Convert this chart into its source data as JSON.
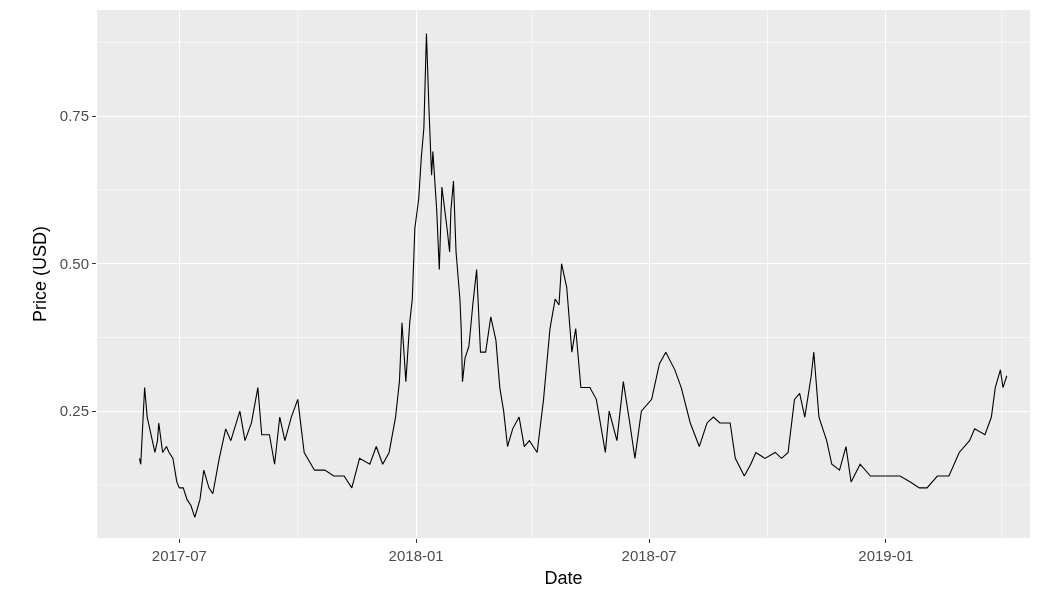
{
  "chart_data": {
    "type": "line",
    "xlabel": "Date",
    "ylabel": "Price (USD)",
    "x": [
      "2017-05-31",
      "2017-06-01",
      "2017-06-04",
      "2017-06-06",
      "2017-06-08",
      "2017-06-12",
      "2017-06-14",
      "2017-06-15",
      "2017-06-18",
      "2017-06-21",
      "2017-06-23",
      "2017-06-26",
      "2017-06-29",
      "2017-07-01",
      "2017-07-04",
      "2017-07-07",
      "2017-07-10",
      "2017-07-13",
      "2017-07-17",
      "2017-07-20",
      "2017-07-24",
      "2017-07-27",
      "2017-08-01",
      "2017-08-06",
      "2017-08-10",
      "2017-08-17",
      "2017-08-21",
      "2017-08-26",
      "2017-08-31",
      "2017-09-03",
      "2017-09-09",
      "2017-09-13",
      "2017-09-17",
      "2017-09-21",
      "2017-09-26",
      "2017-10-01",
      "2017-10-06",
      "2017-10-14",
      "2017-10-22",
      "2017-10-29",
      "2017-11-06",
      "2017-11-12",
      "2017-11-18",
      "2017-11-26",
      "2017-12-01",
      "2017-12-06",
      "2017-12-11",
      "2017-12-16",
      "2017-12-19",
      "2017-12-21",
      "2017-12-24",
      "2017-12-27",
      "2017-12-29",
      "2017-12-31",
      "2018-01-03",
      "2018-01-05",
      "2018-01-07",
      "2018-01-09",
      "2018-01-11",
      "2018-01-13",
      "2018-01-14",
      "2018-01-17",
      "2018-01-19",
      "2018-01-21",
      "2018-01-25",
      "2018-01-27",
      "2018-01-28",
      "2018-01-30",
      "2018-02-01",
      "2018-02-04",
      "2018-02-05",
      "2018-02-06",
      "2018-02-08",
      "2018-02-11",
      "2018-02-14",
      "2018-02-17",
      "2018-02-20",
      "2018-02-24",
      "2018-02-28",
      "2018-03-04",
      "2018-03-07",
      "2018-03-10",
      "2018-03-13",
      "2018-03-17",
      "2018-03-22",
      "2018-03-26",
      "2018-03-30",
      "2018-04-05",
      "2018-04-10",
      "2018-04-15",
      "2018-04-19",
      "2018-04-22",
      "2018-04-24",
      "2018-04-28",
      "2018-05-02",
      "2018-05-05",
      "2018-05-09",
      "2018-05-16",
      "2018-05-21",
      "2018-05-28",
      "2018-05-31",
      "2018-06-06",
      "2018-06-11",
      "2018-06-16",
      "2018-06-20",
      "2018-06-25",
      "2018-07-03",
      "2018-07-09",
      "2018-07-14",
      "2018-07-21",
      "2018-07-26",
      "2018-08-02",
      "2018-08-09",
      "2018-08-15",
      "2018-08-20",
      "2018-08-25",
      "2018-09-02",
      "2018-09-06",
      "2018-09-13",
      "2018-09-18",
      "2018-09-22",
      "2018-09-29",
      "2018-10-07",
      "2018-10-12",
      "2018-10-17",
      "2018-10-22",
      "2018-10-26",
      "2018-10-30",
      "2018-11-04",
      "2018-11-06",
      "2018-11-10",
      "2018-11-16",
      "2018-11-20",
      "2018-11-26",
      "2018-12-01",
      "2018-12-05",
      "2018-12-12",
      "2018-12-20",
      "2018-12-28",
      "2019-01-04",
      "2019-01-12",
      "2019-01-20",
      "2019-01-27",
      "2019-02-02",
      "2019-02-10",
      "2019-02-19",
      "2019-02-27",
      "2019-03-07",
      "2019-03-11",
      "2019-03-19",
      "2019-03-24",
      "2019-03-27",
      "2019-03-31",
      "2019-04-02",
      "2019-04-05"
    ],
    "series": [
      {
        "color": "#000000",
        "values": [
          0.17,
          0.16,
          0.29,
          0.24,
          0.22,
          0.18,
          0.2,
          0.23,
          0.18,
          0.19,
          0.18,
          0.17,
          0.13,
          0.12,
          0.12,
          0.1,
          0.09,
          0.07,
          0.1,
          0.15,
          0.12,
          0.11,
          0.17,
          0.22,
          0.2,
          0.25,
          0.2,
          0.23,
          0.29,
          0.21,
          0.21,
          0.16,
          0.24,
          0.2,
          0.24,
          0.27,
          0.18,
          0.15,
          0.15,
          0.14,
          0.14,
          0.12,
          0.17,
          0.16,
          0.19,
          0.16,
          0.18,
          0.24,
          0.3,
          0.4,
          0.3,
          0.4,
          0.44,
          0.56,
          0.61,
          0.68,
          0.73,
          0.89,
          0.76,
          0.65,
          0.69,
          0.59,
          0.49,
          0.63,
          0.56,
          0.52,
          0.59,
          0.64,
          0.52,
          0.44,
          0.39,
          0.3,
          0.34,
          0.36,
          0.43,
          0.49,
          0.35,
          0.35,
          0.41,
          0.37,
          0.29,
          0.25,
          0.19,
          0.22,
          0.24,
          0.19,
          0.2,
          0.18,
          0.27,
          0.39,
          0.44,
          0.43,
          0.5,
          0.46,
          0.35,
          0.39,
          0.29,
          0.29,
          0.27,
          0.18,
          0.25,
          0.2,
          0.3,
          0.23,
          0.17,
          0.25,
          0.27,
          0.33,
          0.35,
          0.32,
          0.29,
          0.23,
          0.19,
          0.23,
          0.24,
          0.23,
          0.23,
          0.17,
          0.14,
          0.16,
          0.18,
          0.17,
          0.18,
          0.17,
          0.18,
          0.27,
          0.28,
          0.24,
          0.31,
          0.35,
          0.24,
          0.2,
          0.16,
          0.15,
          0.19,
          0.13,
          0.16,
          0.14,
          0.14,
          0.14,
          0.14,
          0.13,
          0.12,
          0.12,
          0.14,
          0.14,
          0.18,
          0.2,
          0.22,
          0.21,
          0.24,
          0.29,
          0.32,
          0.29,
          0.31
        ]
      }
    ],
    "xlim": [
      "2017-04-28",
      "2019-04-23"
    ],
    "xticks": [
      {
        "value": "2017-07-01",
        "label": "2017-07"
      },
      {
        "value": "2017-10-01",
        "label": null
      },
      {
        "value": "2018-01-01",
        "label": "2018-01"
      },
      {
        "value": "2018-04-01",
        "label": null
      },
      {
        "value": "2018-07-01",
        "label": "2018-07"
      },
      {
        "value": "2018-10-01",
        "label": null
      },
      {
        "value": "2019-01-01",
        "label": "2019-01"
      },
      {
        "value": "2019-04-01",
        "label": null
      }
    ],
    "ylim": [
      0.035,
      0.93
    ],
    "yticks": [
      {
        "value": 0.125,
        "label": null
      },
      {
        "value": 0.25,
        "label": "0.25"
      },
      {
        "value": 0.375,
        "label": null
      },
      {
        "value": 0.5,
        "label": "0.50"
      },
      {
        "value": 0.625,
        "label": null
      },
      {
        "value": 0.75,
        "label": "0.75"
      },
      {
        "value": 0.875,
        "label": null
      }
    ],
    "grid": true,
    "line_style": "solid",
    "marker": "none"
  }
}
